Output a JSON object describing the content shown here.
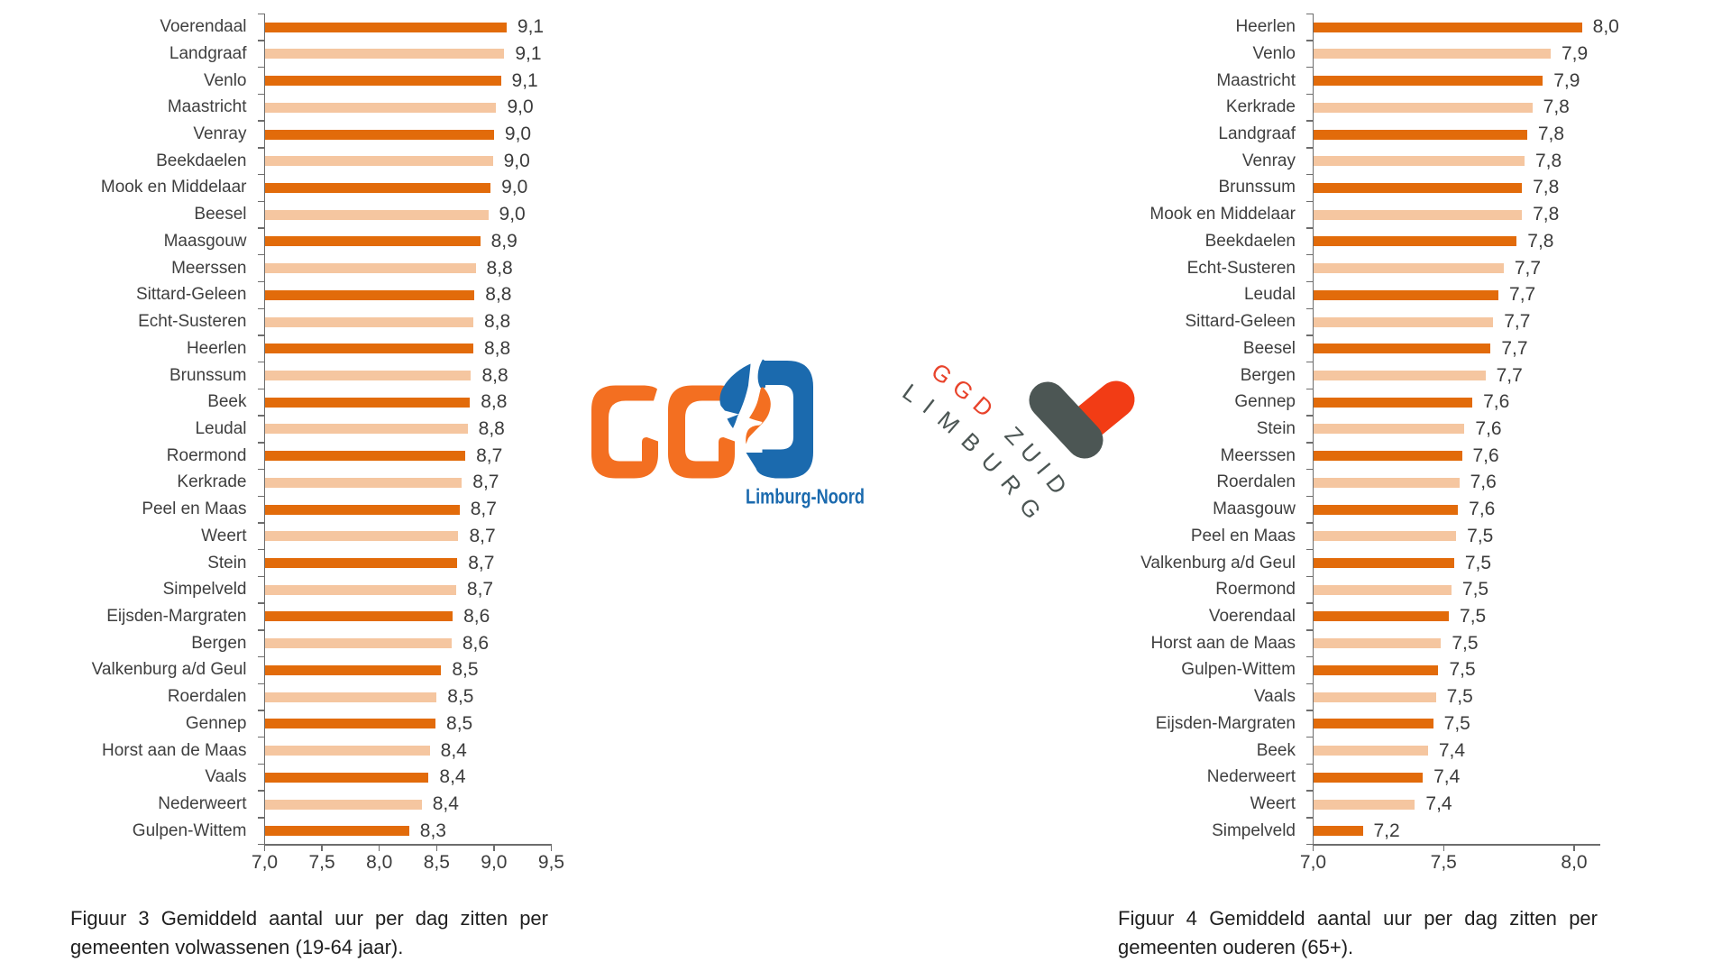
{
  "page": {
    "background": "#ffffff"
  },
  "colors": {
    "bar_dark_orange": "#e26b0a",
    "bar_light_orange": "#f5c6a0",
    "axis_gray": "#6d6d6d",
    "text_gray": "#3c3c3c",
    "caption_black": "#1f1f1f",
    "noord_logo_orange": "#f36f21",
    "noord_logo_blue": "#1b6aae",
    "zuid_logo_red": "#e8432b",
    "zuid_logo_heart_red": "#f23c15",
    "zuid_logo_gray": "#4c5654"
  },
  "chart_data": [
    {
      "type": "bar",
      "orientation": "horizontal",
      "figure_caption_lines": [
        "Figuur 3 Gemiddeld aantal uur per dag zitten per",
        "gemeenten volwassenen (19-64 jaar)."
      ],
      "figure_caption": "Figuur 3 Gemiddeld aantal uur per dag zitten per gemeenten volwassenen (19-64 jaar).",
      "xlabel": "",
      "ylabel": "",
      "xlim": [
        7.0,
        9.5
      ],
      "x_tick_labels": [
        "7,0",
        "7,5",
        "8,0",
        "8,5",
        "9,0",
        "9,5"
      ],
      "x_tick_values": [
        7.0,
        7.5,
        8.0,
        8.5,
        9.0,
        9.5
      ],
      "grid": false,
      "legend": false,
      "bar_color_alternation": [
        "#e26b0a",
        "#f5c6a0"
      ],
      "categories": [
        "Voerendaal",
        "Landgraaf",
        "Venlo",
        "Maastricht",
        "Venray",
        "Beekdaelen",
        "Mook en Middelaar",
        "Beesel",
        "Maasgouw",
        "Meerssen",
        "Sittard-Geleen",
        "Echt-Susteren",
        "Heerlen",
        "Brunssum",
        "Beek",
        "Leudal",
        "Roermond",
        "Kerkrade",
        "Peel en Maas",
        "Weert",
        "Stein",
        "Simpelveld",
        "Eijsden-Margraten",
        "Bergen",
        "Valkenburg a/d Geul",
        "Roerdalen",
        "Gennep",
        "Horst aan de Maas",
        "Vaals",
        "Nederweert",
        "Gulpen-Wittem"
      ],
      "values": [
        9.1,
        9.1,
        9.1,
        9.0,
        9.0,
        9.0,
        9.0,
        9.0,
        8.9,
        8.8,
        8.8,
        8.8,
        8.8,
        8.8,
        8.8,
        8.8,
        8.7,
        8.7,
        8.7,
        8.7,
        8.7,
        8.7,
        8.6,
        8.6,
        8.5,
        8.5,
        8.5,
        8.4,
        8.4,
        8.4,
        8.3
      ],
      "value_labels": [
        "9,1",
        "9,1",
        "9,1",
        "9,0",
        "9,0",
        "9,0",
        "9,0",
        "9,0",
        "8,9",
        "8,8",
        "8,8",
        "8,8",
        "8,8",
        "8,8",
        "8,8",
        "8,8",
        "8,7",
        "8,7",
        "8,7",
        "8,7",
        "8,7",
        "8,7",
        "8,6",
        "8,6",
        "8,5",
        "8,5",
        "8,5",
        "8,4",
        "8,4",
        "8,4",
        "8,3"
      ],
      "bar_lengths": [
        9.11,
        9.09,
        9.06,
        9.02,
        9.0,
        8.99,
        8.97,
        8.95,
        8.88,
        8.84,
        8.83,
        8.82,
        8.82,
        8.8,
        8.79,
        8.77,
        8.75,
        8.72,
        8.7,
        8.69,
        8.68,
        8.67,
        8.64,
        8.63,
        8.54,
        8.5,
        8.49,
        8.44,
        8.43,
        8.37,
        8.26
      ]
    },
    {
      "type": "bar",
      "orientation": "horizontal",
      "figure_caption_lines": [
        "Figuur 4 Gemiddeld aantal uur per dag zitten per",
        "gemeenten ouderen (65+)."
      ],
      "figure_caption": "Figuur 4 Gemiddeld aantal uur per dag zitten per gemeenten ouderen (65+).",
      "xlabel": "",
      "ylabel": "",
      "xlim": [
        7.0,
        8.1
      ],
      "x_tick_labels": [
        "7,0",
        "7,5",
        "8,0"
      ],
      "x_tick_values": [
        7.0,
        7.5,
        8.0
      ],
      "grid": false,
      "legend": false,
      "bar_color_alternation": [
        "#e26b0a",
        "#f5c6a0"
      ],
      "categories": [
        "Heerlen",
        "Venlo",
        "Maastricht",
        "Kerkrade",
        "Landgraaf",
        "Venray",
        "Brunssum",
        "Mook en Middelaar",
        "Beekdaelen",
        "Echt-Susteren",
        "Leudal",
        "Sittard-Geleen",
        "Beesel",
        "Bergen",
        "Gennep",
        "Stein",
        "Meerssen",
        "Roerdalen",
        "Maasgouw",
        "Peel en Maas",
        "Valkenburg a/d Geul",
        "Roermond",
        "Voerendaal",
        "Horst aan de Maas",
        "Gulpen-Wittem",
        "Vaals",
        "Eijsden-Margraten",
        "Beek",
        "Nederweert",
        "Weert",
        "Simpelveld"
      ],
      "values": [
        8.0,
        7.9,
        7.9,
        7.8,
        7.8,
        7.8,
        7.8,
        7.8,
        7.8,
        7.7,
        7.7,
        7.7,
        7.7,
        7.7,
        7.6,
        7.6,
        7.6,
        7.6,
        7.6,
        7.5,
        7.5,
        7.5,
        7.5,
        7.5,
        7.5,
        7.5,
        7.5,
        7.4,
        7.4,
        7.4,
        7.2
      ],
      "value_labels": [
        "8,0",
        "7,9",
        "7,9",
        "7,8",
        "7,8",
        "7,8",
        "7,8",
        "7,8",
        "7,8",
        "7,7",
        "7,7",
        "7,7",
        "7,7",
        "7,7",
        "7,6",
        "7,6",
        "7,6",
        "7,6",
        "7,6",
        "7,5",
        "7,5",
        "7,5",
        "7,5",
        "7,5",
        "7,5",
        "7,5",
        "7,5",
        "7,4",
        "7,4",
        "7,4",
        "7,2"
      ],
      "bar_lengths": [
        8.03,
        7.91,
        7.88,
        7.84,
        7.82,
        7.81,
        7.8,
        7.8,
        7.78,
        7.73,
        7.71,
        7.69,
        7.68,
        7.66,
        7.61,
        7.58,
        7.57,
        7.56,
        7.555,
        7.548,
        7.54,
        7.53,
        7.52,
        7.49,
        7.48,
        7.47,
        7.46,
        7.44,
        7.42,
        7.39,
        7.19
      ]
    }
  ],
  "logos": {
    "noord": {
      "name": "GGD Limburg-Noord",
      "letters": "GGD",
      "subtitle": "Limburg-Noord",
      "orange": "#f36f21",
      "blue": "#1b6aae"
    },
    "zuid": {
      "name": "GGD Zuid Limburg",
      "line1_red": "GGD",
      "line1_gray": "ZUID",
      "line2_gray": "LIMBURG",
      "red": "#e8432b",
      "heart_red": "#f23c15",
      "gray": "#4c5654"
    }
  }
}
